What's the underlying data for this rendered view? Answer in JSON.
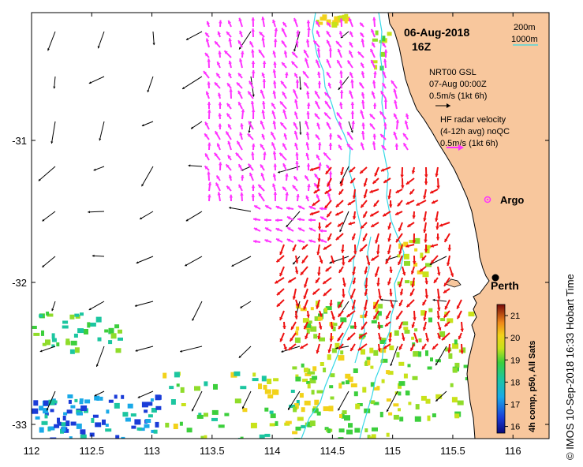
{
  "map": {
    "date": "06-Aug-2018",
    "time": "16Z",
    "bounds": {
      "lon_min": 112,
      "lon_max": 116.3,
      "lat_min": -33.1,
      "lat_max": -30.1
    },
    "x_ticks": [
      {
        "value": 112,
        "label": "112"
      },
      {
        "value": 112.5,
        "label": "112.5"
      },
      {
        "value": 113,
        "label": "113"
      },
      {
        "value": 113.5,
        "label": "113.5"
      },
      {
        "value": 114,
        "label": "114"
      },
      {
        "value": 114.5,
        "label": "114.5"
      },
      {
        "value": 115,
        "label": "115"
      },
      {
        "value": 115.5,
        "label": "115.5"
      },
      {
        "value": 116,
        "label": "116"
      }
    ],
    "y_ticks": [
      {
        "value": -31,
        "label": "-31"
      },
      {
        "value": -32,
        "label": "-32"
      },
      {
        "value": -33,
        "label": "-33"
      }
    ],
    "land_color": "#f8c79d",
    "ocean_color": "#ffffff",
    "isobath_color": "#36d8e6"
  },
  "legend": {
    "isobath_1": "200m",
    "isobath_2": "1000m",
    "model_name": "NRT00 GSL",
    "model_time": "07-Aug 00:00Z",
    "model_scale": "0.5m/s (1kt 6h)",
    "radar_line1": "HF radar velocity",
    "radar_line2": "(4-12h avg) noQC",
    "radar_scale": "0.5m/s (1kt 6h)",
    "argo_label": "Argo",
    "perth_label": "Perth",
    "argo_color": "#ff33ff",
    "radar_color": "#ff33ff",
    "radar_strong_color": "#ee1111",
    "model_color": "#000000"
  },
  "places": [
    {
      "name": "Argo",
      "lon": 115.88,
      "lat": -31.4,
      "type": "argo"
    },
    {
      "name": "Perth",
      "lon": 115.86,
      "lat": -31.95,
      "type": "city"
    }
  ],
  "colorbar": {
    "label": "4h comp, p50, All Sats",
    "min": 15.7,
    "max": 21.5,
    "ticks": [
      "16",
      "17",
      "18",
      "19",
      "20",
      "21"
    ]
  },
  "credit": "© IMOS 10-Sep-2018 16:33 Hobart Time"
}
